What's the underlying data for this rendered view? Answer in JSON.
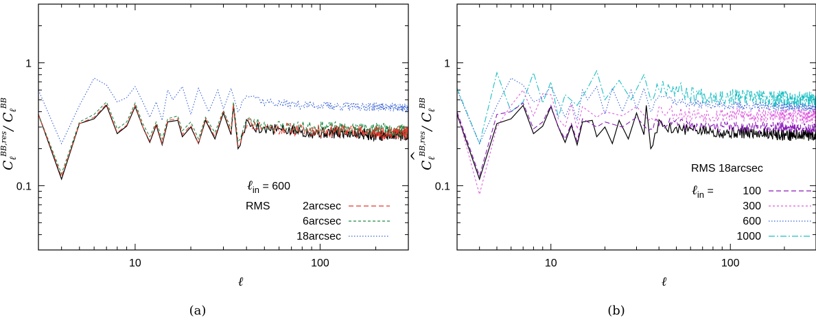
{
  "chart_data": [
    {
      "id": "a",
      "type": "line",
      "caption": "(a)",
      "xlabel": "ℓ",
      "ylabel": "Ĉ_ℓ^{BB,res} / C_ℓ^{BB}",
      "x_scale": "log",
      "y_scale": "log",
      "xlim": [
        3,
        300
      ],
      "ylim": [
        0.03,
        3
      ],
      "xticks": [
        {
          "value": 10,
          "label": "10"
        },
        {
          "value": 100,
          "label": "100"
        }
      ],
      "yticks": [
        {
          "value": 0.1,
          "label": "0.1"
        },
        {
          "value": 1,
          "label": "1"
        }
      ],
      "legend_header": {
        "prefix": "ℓ",
        "sub": "in",
        "text": " =  600"
      },
      "legend_group_label": "RMS",
      "series": [
        {
          "name": "2arcsec",
          "color": "#e4372b",
          "dash": "7,4",
          "level": 0.28,
          "amp": 0.12,
          "seed": 11,
          "anchor": [
            [
              3,
              0.38
            ],
            [
              4,
              0.118
            ],
            [
              5,
              0.32
            ],
            [
              6,
              0.36
            ],
            [
              7,
              0.46
            ],
            [
              8,
              0.27
            ],
            [
              9,
              0.31
            ],
            [
              10,
              0.45
            ],
            [
              11,
              0.3
            ],
            [
              12,
              0.23
            ],
            [
              13,
              0.32
            ],
            [
              14,
              0.22
            ],
            [
              15,
              0.34
            ],
            [
              17,
              0.35
            ],
            [
              18,
              0.26
            ],
            [
              20,
              0.31
            ],
            [
              22,
              0.22
            ],
            [
              24,
              0.35
            ],
            [
              27,
              0.25
            ],
            [
              30,
              0.4
            ],
            [
              33,
              0.27
            ],
            [
              34,
              0.46
            ],
            [
              36,
              0.21
            ],
            [
              40,
              0.33
            ],
            [
              50,
              0.3
            ],
            [
              70,
              0.29
            ],
            [
              100,
              0.28
            ],
            [
              150,
              0.28
            ],
            [
              200,
              0.27
            ],
            [
              300,
              0.27
            ]
          ]
        },
        {
          "name": "6arcsec",
          "color": "#1f8a43",
          "dash": "4,3",
          "level": 0.3,
          "amp": 0.12,
          "seed": 23,
          "anchor": [
            [
              3,
              0.38
            ],
            [
              4,
              0.125
            ],
            [
              5,
              0.33
            ],
            [
              6,
              0.38
            ],
            [
              7,
              0.48
            ],
            [
              8,
              0.29
            ],
            [
              9,
              0.33
            ],
            [
              10,
              0.47
            ],
            [
              11,
              0.32
            ],
            [
              12,
              0.25
            ],
            [
              13,
              0.33
            ],
            [
              14,
              0.24
            ],
            [
              15,
              0.35
            ],
            [
              17,
              0.37
            ],
            [
              18,
              0.28
            ],
            [
              20,
              0.33
            ],
            [
              22,
              0.24
            ],
            [
              24,
              0.36
            ],
            [
              27,
              0.27
            ],
            [
              30,
              0.41
            ],
            [
              33,
              0.29
            ],
            [
              34,
              0.48
            ],
            [
              36,
              0.23
            ],
            [
              40,
              0.34
            ],
            [
              50,
              0.31
            ],
            [
              70,
              0.3
            ],
            [
              100,
              0.3
            ],
            [
              150,
              0.29
            ],
            [
              200,
              0.29
            ],
            [
              300,
              0.28
            ]
          ]
        },
        {
          "name": "18arcsec",
          "color": "#3560d6",
          "dash": "1.5,2.5",
          "level": 0.43,
          "amp": 0.08,
          "seed": 37,
          "anchor": [
            [
              3,
              0.6
            ],
            [
              4,
              0.22
            ],
            [
              5,
              0.45
            ],
            [
              6,
              0.75
            ],
            [
              7,
              0.66
            ],
            [
              8,
              0.48
            ],
            [
              9,
              0.52
            ],
            [
              10,
              0.64
            ],
            [
              11,
              0.48
            ],
            [
              12,
              0.36
            ],
            [
              13,
              0.48
            ],
            [
              14,
              0.34
            ],
            [
              15,
              0.6
            ],
            [
              16,
              0.5
            ],
            [
              18,
              0.64
            ],
            [
              20,
              0.38
            ],
            [
              22,
              0.62
            ],
            [
              25,
              0.4
            ],
            [
              28,
              0.6
            ],
            [
              30,
              0.42
            ],
            [
              33,
              0.62
            ],
            [
              36,
              0.4
            ],
            [
              40,
              0.58
            ],
            [
              50,
              0.48
            ],
            [
              70,
              0.46
            ],
            [
              100,
              0.45
            ],
            [
              150,
              0.44
            ],
            [
              200,
              0.44
            ],
            [
              300,
              0.43
            ]
          ]
        }
      ],
      "reference_line": {
        "color": "#000000",
        "level": 0.27,
        "amp": 0.11,
        "seed": 5,
        "anchor": [
          [
            3,
            0.38
          ],
          [
            4,
            0.113
          ],
          [
            5,
            0.32
          ],
          [
            6,
            0.35
          ],
          [
            7,
            0.45
          ],
          [
            8,
            0.265
          ],
          [
            9,
            0.305
          ],
          [
            10,
            0.44
          ],
          [
            11,
            0.3
          ],
          [
            12,
            0.225
          ],
          [
            13,
            0.31
          ],
          [
            14,
            0.215
          ],
          [
            15,
            0.33
          ],
          [
            17,
            0.34
          ],
          [
            18,
            0.25
          ],
          [
            20,
            0.3
          ],
          [
            22,
            0.22
          ],
          [
            24,
            0.34
          ],
          [
            27,
            0.24
          ],
          [
            30,
            0.39
          ],
          [
            33,
            0.26
          ],
          [
            34,
            0.45
          ],
          [
            36,
            0.2
          ],
          [
            40,
            0.32
          ],
          [
            50,
            0.29
          ],
          [
            70,
            0.28
          ],
          [
            100,
            0.27
          ],
          [
            150,
            0.27
          ],
          [
            200,
            0.26
          ],
          [
            300,
            0.26
          ]
        ]
      }
    },
    {
      "id": "b",
      "type": "line",
      "caption": "(b)",
      "xlabel": "ℓ",
      "ylabel": "Ĉ_ℓ^{BB,res} / C_ℓ^{BB}",
      "x_scale": "log",
      "y_scale": "log",
      "xlim": [
        3,
        300
      ],
      "ylim": [
        0.03,
        3
      ],
      "xticks": [
        {
          "value": 10,
          "label": "10"
        },
        {
          "value": 100,
          "label": "100"
        }
      ],
      "yticks": [
        {
          "value": 0.1,
          "label": "0.1"
        },
        {
          "value": 1,
          "label": "1"
        }
      ],
      "legend_header": {
        "text": "RMS 18arcsec"
      },
      "legend_group_label": {
        "prefix": "ℓ",
        "sub": "in",
        "text": " = "
      },
      "series": [
        {
          "name": "100",
          "color": "#8b18b8",
          "dash": "7,4",
          "level": 0.3,
          "amp": 0.1,
          "seed": 41,
          "anchor": [
            [
              3,
              0.4
            ],
            [
              4,
              0.12
            ],
            [
              5,
              0.38
            ],
            [
              6,
              0.4
            ],
            [
              7,
              0.47
            ],
            [
              8,
              0.29
            ],
            [
              9,
              0.33
            ],
            [
              10,
              0.45
            ],
            [
              11,
              0.3
            ],
            [
              12,
              0.24
            ],
            [
              13,
              0.32
            ],
            [
              14,
              0.23
            ],
            [
              15,
              0.35
            ],
            [
              18,
              0.3
            ],
            [
              20,
              0.33
            ],
            [
              25,
              0.3
            ],
            [
              30,
              0.36
            ],
            [
              35,
              0.28
            ],
            [
              40,
              0.33
            ],
            [
              60,
              0.31
            ],
            [
              100,
              0.3
            ],
            [
              200,
              0.3
            ],
            [
              300,
              0.29
            ]
          ]
        },
        {
          "name": "300",
          "color": "#e05ce0",
          "dash": "3,3",
          "level": 0.38,
          "amp": 0.14,
          "seed": 53,
          "anchor": [
            [
              3,
              0.4
            ],
            [
              4,
              0.085
            ],
            [
              5,
              0.3
            ],
            [
              6,
              0.45
            ],
            [
              7,
              0.6
            ],
            [
              8,
              0.37
            ],
            [
              9,
              0.56
            ],
            [
              10,
              0.55
            ],
            [
              11,
              0.35
            ],
            [
              12,
              0.3
            ],
            [
              13,
              0.46
            ],
            [
              14,
              0.29
            ],
            [
              15,
              0.44
            ],
            [
              18,
              0.36
            ],
            [
              20,
              0.4
            ],
            [
              25,
              0.37
            ],
            [
              30,
              0.44
            ],
            [
              35,
              0.34
            ],
            [
              40,
              0.42
            ],
            [
              60,
              0.38
            ],
            [
              100,
              0.38
            ],
            [
              200,
              0.37
            ],
            [
              300,
              0.37
            ]
          ]
        },
        {
          "name": "600",
          "color": "#3560d6",
          "dash": "1.5,2.5",
          "level": 0.43,
          "amp": 0.08,
          "seed": 37,
          "anchor": [
            [
              3,
              0.6
            ],
            [
              4,
              0.22
            ],
            [
              5,
              0.45
            ],
            [
              6,
              0.75
            ],
            [
              7,
              0.66
            ],
            [
              8,
              0.48
            ],
            [
              9,
              0.52
            ],
            [
              10,
              0.64
            ],
            [
              11,
              0.48
            ],
            [
              12,
              0.36
            ],
            [
              13,
              0.48
            ],
            [
              14,
              0.34
            ],
            [
              15,
              0.6
            ],
            [
              16,
              0.5
            ],
            [
              18,
              0.64
            ],
            [
              20,
              0.38
            ],
            [
              22,
              0.62
            ],
            [
              25,
              0.4
            ],
            [
              28,
              0.6
            ],
            [
              30,
              0.42
            ],
            [
              33,
              0.62
            ],
            [
              36,
              0.4
            ],
            [
              40,
              0.58
            ],
            [
              50,
              0.48
            ],
            [
              70,
              0.46
            ],
            [
              100,
              0.45
            ],
            [
              150,
              0.44
            ],
            [
              200,
              0.44
            ],
            [
              300,
              0.43
            ]
          ]
        },
        {
          "name": "1000",
          "color": "#1bbfc4",
          "dash": "9,3,2,3",
          "level": 0.52,
          "amp": 0.16,
          "seed": 67,
          "anchor": [
            [
              3,
              0.62
            ],
            [
              4,
              0.22
            ],
            [
              5,
              0.83
            ],
            [
              6,
              0.4
            ],
            [
              7,
              0.48
            ],
            [
              8,
              0.83
            ],
            [
              9,
              0.47
            ],
            [
              10,
              0.7
            ],
            [
              11,
              0.36
            ],
            [
              12,
              0.55
            ],
            [
              14,
              0.45
            ],
            [
              16,
              0.62
            ],
            [
              18,
              0.86
            ],
            [
              20,
              0.5
            ],
            [
              24,
              0.72
            ],
            [
              28,
              0.5
            ],
            [
              33,
              0.8
            ],
            [
              36,
              0.5
            ],
            [
              40,
              0.68
            ],
            [
              60,
              0.56
            ],
            [
              100,
              0.53
            ],
            [
              150,
              0.52
            ],
            [
              200,
              0.51
            ],
            [
              300,
              0.5
            ]
          ]
        }
      ],
      "reference_line": {
        "color": "#000000",
        "level": 0.27,
        "amp": 0.11,
        "seed": 5,
        "anchor": [
          [
            3,
            0.38
          ],
          [
            4,
            0.113
          ],
          [
            5,
            0.32
          ],
          [
            6,
            0.35
          ],
          [
            7,
            0.45
          ],
          [
            8,
            0.265
          ],
          [
            9,
            0.305
          ],
          [
            10,
            0.44
          ],
          [
            11,
            0.3
          ],
          [
            12,
            0.225
          ],
          [
            13,
            0.31
          ],
          [
            14,
            0.215
          ],
          [
            15,
            0.33
          ],
          [
            17,
            0.34
          ],
          [
            18,
            0.25
          ],
          [
            20,
            0.3
          ],
          [
            22,
            0.22
          ],
          [
            24,
            0.34
          ],
          [
            27,
            0.24
          ],
          [
            30,
            0.39
          ],
          [
            33,
            0.26
          ],
          [
            34,
            0.45
          ],
          [
            36,
            0.2
          ],
          [
            40,
            0.32
          ],
          [
            50,
            0.29
          ],
          [
            70,
            0.28
          ],
          [
            100,
            0.27
          ],
          [
            150,
            0.27
          ],
          [
            200,
            0.26
          ],
          [
            300,
            0.26
          ]
        ]
      }
    }
  ]
}
